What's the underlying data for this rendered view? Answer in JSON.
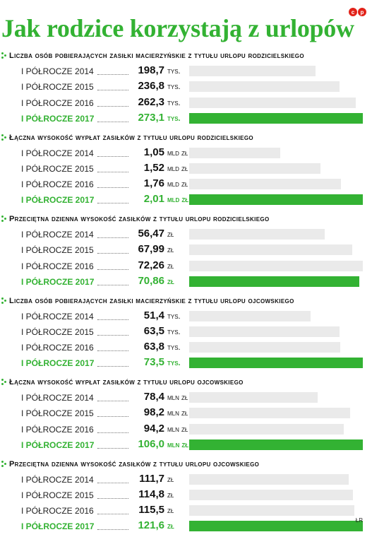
{
  "title": "Jak rodzice korzystają z urlopów",
  "logo": [
    "c",
    "p"
  ],
  "source": "ŁR",
  "colors": {
    "accent": "#33b233",
    "bar": "#eaeaea",
    "logo": "#e2231a"
  },
  "chart_data": [
    {
      "type": "bar",
      "title": "Liczba osób pobierających zasiłki macierzyńskie z tytułu urlopu rodzicielskiego",
      "categories": [
        "I PÓŁROCZE 2014",
        "I PÓŁROCZE 2015",
        "I PÓŁROCZE 2016",
        "I PÓŁROCZE 2017"
      ],
      "labels": [
        "198,7",
        "236,8",
        "262,3",
        "273,1"
      ],
      "values": [
        198.7,
        236.8,
        262.3,
        273.1
      ],
      "unit": "tys.",
      "highlight": 3
    },
    {
      "type": "bar",
      "title": "Łączna wysokość wypłat zasiłków z tytułu urlopu rodzicielskiego",
      "categories": [
        "I PÓŁROCZE 2014",
        "I PÓŁROCZE 2015",
        "I PÓŁROCZE 2016",
        "I PÓŁROCZE 2017"
      ],
      "labels": [
        "1,05",
        "1,52",
        "1,76",
        "2,01"
      ],
      "values": [
        1.05,
        1.52,
        1.76,
        2.01
      ],
      "unit": "mld zł",
      "highlight": 3
    },
    {
      "type": "bar",
      "title": "Przeciętna dzienna wysokość zasiłków z tytułu urlopu rodzicielskiego",
      "categories": [
        "I PÓŁROCZE 2014",
        "I PÓŁROCZE 2015",
        "I PÓŁROCZE 2016",
        "I PÓŁROCZE 2017"
      ],
      "labels": [
        "56,47",
        "67,99",
        "72,26",
        "70,86"
      ],
      "values": [
        56.47,
        67.99,
        72.26,
        70.86
      ],
      "unit": "zł",
      "highlight": 3
    },
    {
      "type": "bar",
      "title": "Liczba osób pobierających zasiłki macierzyńskie z tytułu urlopu ojcowskiego",
      "categories": [
        "I PÓŁROCZE 2014",
        "I PÓŁROCZE 2015",
        "I PÓŁROCZE 2016",
        "I PÓŁROCZE 2017"
      ],
      "labels": [
        "51,4",
        "63,5",
        "63,8",
        "73,5"
      ],
      "values": [
        51.4,
        63.5,
        63.8,
        73.5
      ],
      "unit": "tys.",
      "highlight": 3
    },
    {
      "type": "bar",
      "title": "Łączna wysokość wypłat zasiłków z tytułu urlopu ojcowskiego",
      "categories": [
        "I PÓŁROCZE 2014",
        "I PÓŁROCZE 2015",
        "I PÓŁROCZE 2016",
        "I PÓŁROCZE 2017"
      ],
      "labels": [
        "78,4",
        "98,2",
        "94,2",
        "106,0"
      ],
      "values": [
        78.4,
        98.2,
        94.2,
        106.0
      ],
      "unit": "mln zł",
      "highlight": 3
    },
    {
      "type": "bar",
      "title": "Przeciętna dzienna wysokość zasiłków z tytułu urlopu ojcowskiego",
      "categories": [
        "I PÓŁROCZE 2014",
        "I PÓŁROCZE 2015",
        "I PÓŁROCZE 2016",
        "I PÓŁROCZE 2017"
      ],
      "labels": [
        "111,7",
        "114,8",
        "115,5",
        "121,6"
      ],
      "values": [
        111.7,
        114.8,
        115.5,
        121.6
      ],
      "unit": "zł",
      "highlight": 3
    }
  ]
}
